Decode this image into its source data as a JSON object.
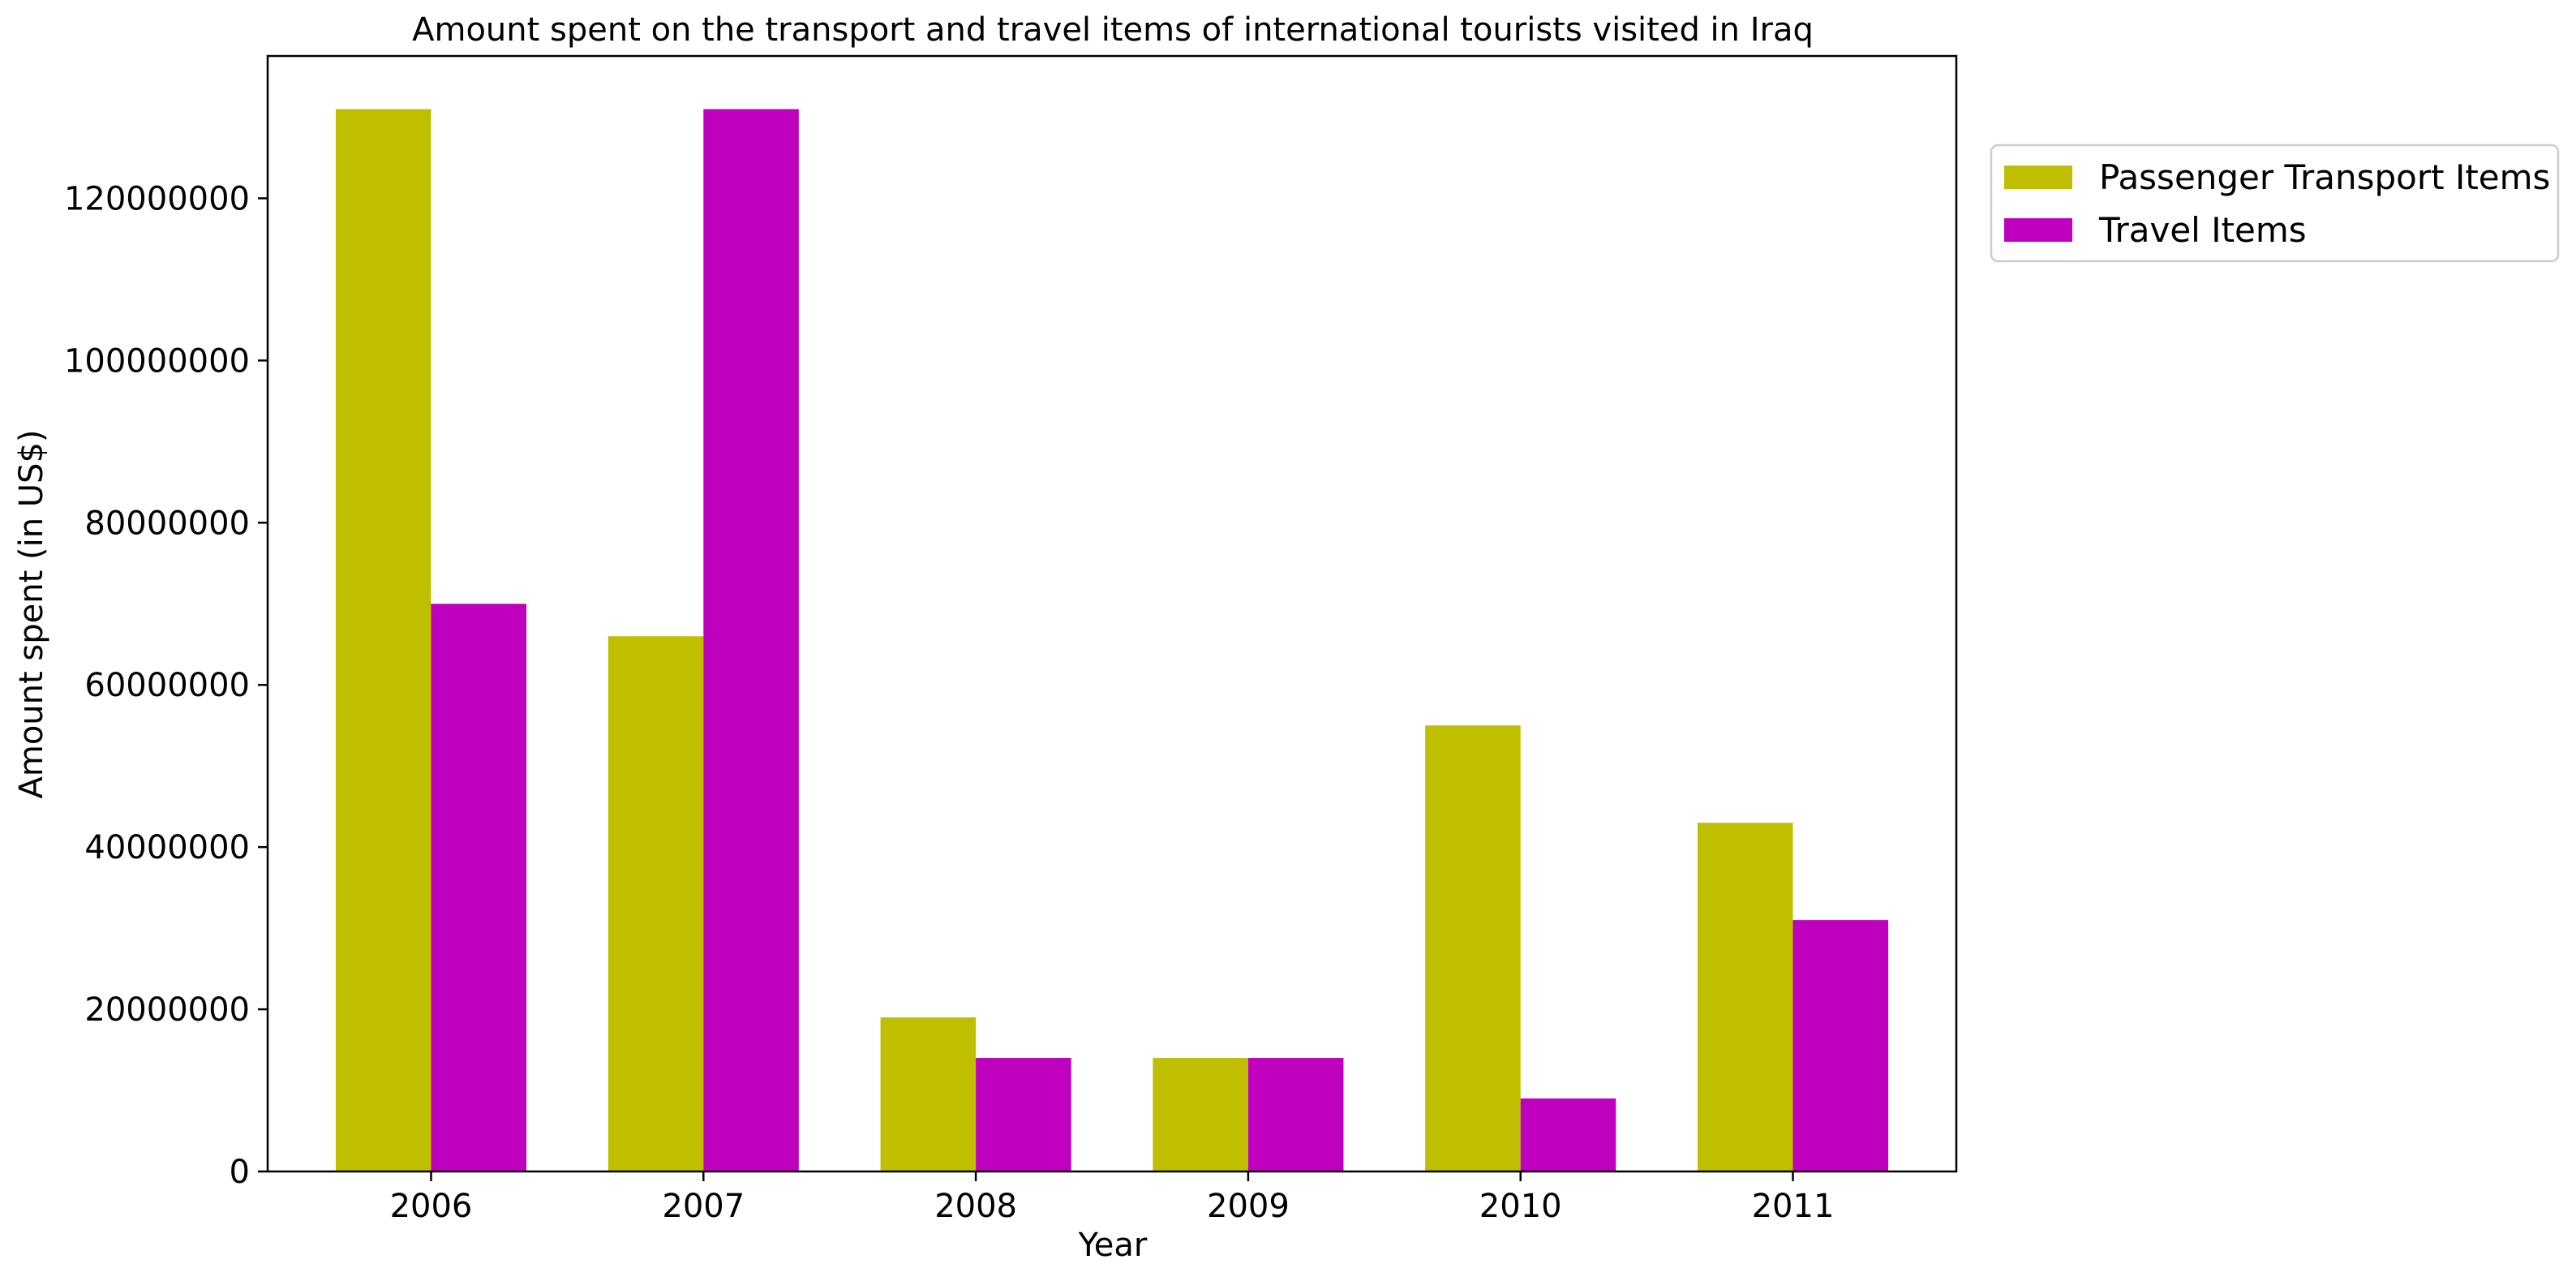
{
  "chart_data": {
    "type": "bar",
    "title": "Amount spent on the transport and travel items of international tourists visited in Iraq",
    "xlabel": "Year",
    "ylabel": "Amount spent (in US$)",
    "categories": [
      "2006",
      "2007",
      "2008",
      "2009",
      "2010",
      "2011"
    ],
    "series": [
      {
        "name": "Passenger Transport Items",
        "color": "#bfbf00",
        "values": [
          131000000,
          66000000,
          19000000,
          14000000,
          55000000,
          43000000
        ]
      },
      {
        "name": "Travel Items",
        "color": "#bf00bf",
        "values": [
          70000000,
          131000000,
          14000000,
          14000000,
          9000000,
          31000000
        ]
      }
    ],
    "ylim": [
      0,
      137550000
    ],
    "yticks": [
      0,
      20000000,
      40000000,
      60000000,
      80000000,
      100000000,
      120000000
    ],
    "ytick_labels": [
      "0",
      "20000000",
      "40000000",
      "60000000",
      "80000000",
      "100000000",
      "120000000"
    ],
    "grid": false,
    "legend_position": "outside-top-right"
  }
}
